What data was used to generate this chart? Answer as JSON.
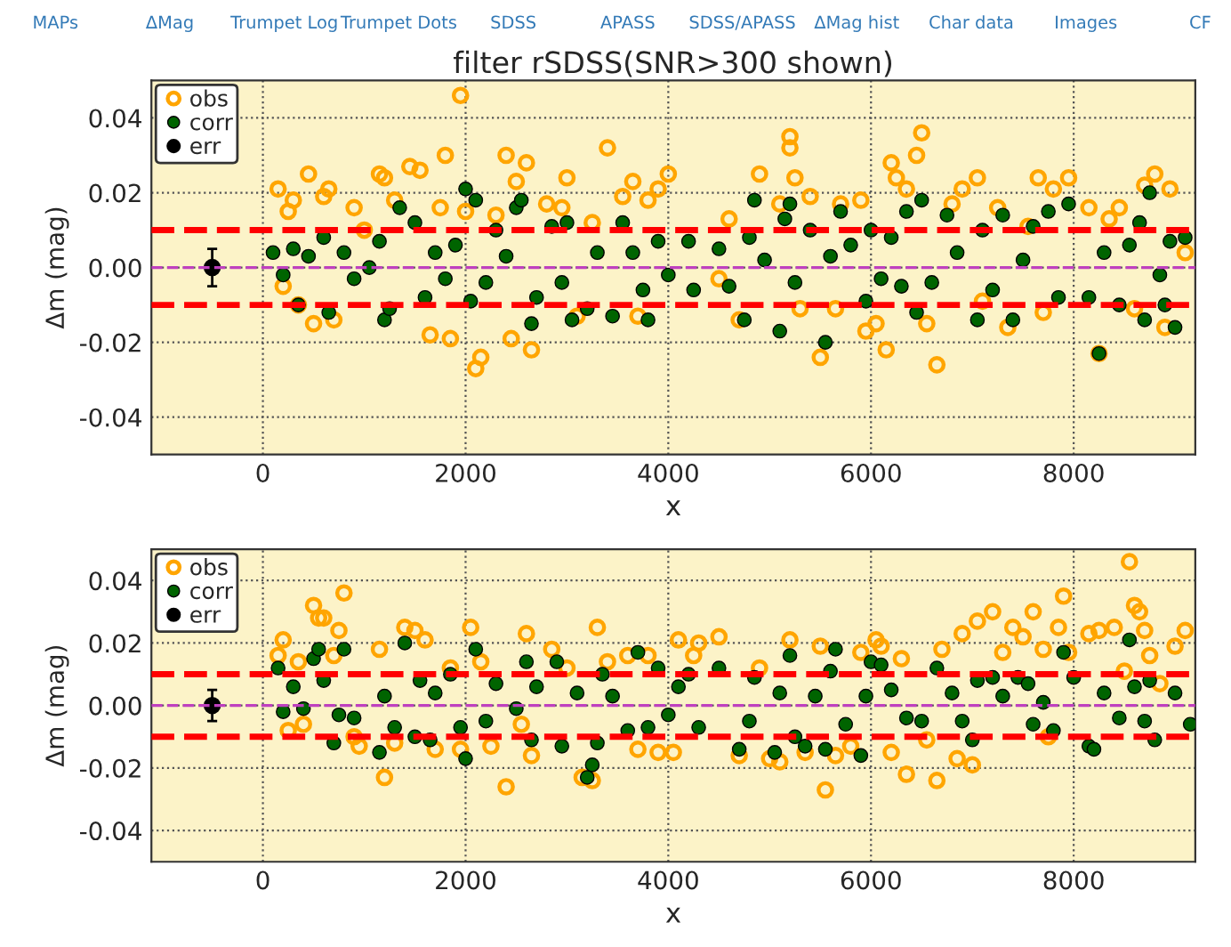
{
  "chart_data": [
    {
      "type": "scatter",
      "title": "filter rSDSS(SNR>300 shown)",
      "xlabel": "x",
      "ylabel": "Δm (mag)",
      "annotations": [
        "MAPs",
        "ΔMag",
        "Trumpet Log",
        "Trumpet Dots",
        "SDSS",
        "APASS",
        "SDSS/APASS",
        "ΔMag hist",
        "Char data",
        "Images",
        "CF"
      ],
      "xlim": [
        -1100,
        9200
      ],
      "xticks": [
        0,
        2000,
        4000,
        6000,
        8000
      ],
      "ylim": [
        -0.05,
        0.05
      ],
      "yticks": [
        {
          "value": -0.04,
          "label": "-0.04"
        },
        {
          "value": -0.02,
          "label": "-0.02"
        },
        {
          "value": 0,
          "label": "0.00"
        },
        {
          "value": 0.02,
          "label": "0.02"
        },
        {
          "value": 0.04,
          "label": "0.04"
        }
      ],
      "grid": true,
      "legend": "top left",
      "marker": "circle",
      "ref_lines": [
        {
          "axis": "y",
          "value": 0.01,
          "color": "#ff0000",
          "line_style": "dashed"
        },
        {
          "axis": "y",
          "value": -0.01,
          "color": "#ff0000",
          "line_style": "dashed"
        },
        {
          "axis": "y",
          "value": 0,
          "color": "#bf40bf",
          "line_style": "dashed"
        }
      ],
      "series": [
        {
          "name": "obs",
          "color": "#ffa500",
          "x": [
            150,
            200,
            250,
            300,
            350,
            450,
            500,
            600,
            650,
            700,
            900,
            1000,
            1150,
            1200,
            1300,
            1450,
            1550,
            1650,
            1750,
            1800,
            1850,
            1950,
            2000,
            2100,
            2150,
            2300,
            2400,
            2450,
            2500,
            2600,
            2650,
            2800,
            2950,
            3000,
            3100,
            3250,
            3400,
            3550,
            3650,
            3700,
            3800,
            3900,
            4000,
            4500,
            4600,
            4700,
            4900,
            5100,
            5200,
            5200,
            5250,
            5300,
            5400,
            5500,
            5650,
            5700,
            5900,
            5950,
            6050,
            6150,
            6200,
            6250,
            6350,
            6450,
            6500,
            6550,
            6650,
            6800,
            6900,
            7050,
            7100,
            7250,
            7350,
            7550,
            7650,
            7700,
            7800,
            7950,
            8150,
            8250,
            8350,
            8450,
            8600,
            8700,
            8800,
            8900,
            8950,
            9100
          ],
          "values": [
            0.021,
            -0.005,
            0.015,
            0.018,
            -0.01,
            0.025,
            -0.015,
            0.019,
            0.021,
            -0.014,
            0.016,
            0.01,
            0.025,
            0.024,
            0.018,
            0.027,
            0.026,
            -0.018,
            0.016,
            0.03,
            -0.019,
            0.046,
            0.015,
            -0.027,
            -0.024,
            0.014,
            0.03,
            -0.019,
            0.023,
            0.028,
            -0.022,
            0.017,
            0.016,
            0.024,
            -0.013,
            0.012,
            0.032,
            0.019,
            0.023,
            -0.013,
            0.018,
            0.021,
            0.025,
            -0.003,
            0.013,
            -0.014,
            0.025,
            0.017,
            0.035,
            0.032,
            0.024,
            -0.011,
            0.019,
            -0.024,
            -0.011,
            0.017,
            0.018,
            -0.017,
            -0.015,
            -0.022,
            0.028,
            0.024,
            0.021,
            0.03,
            0.036,
            -0.015,
            -0.026,
            0.017,
            0.021,
            0.024,
            -0.009,
            0.016,
            -0.016,
            0.011,
            0.024,
            -0.012,
            0.021,
            0.024,
            0.016,
            -0.023,
            0.013,
            0.016,
            -0.011,
            0.022,
            0.025,
            -0.016,
            0.021,
            0.004
          ]
        },
        {
          "name": "corr",
          "color": "#006400",
          "x": [
            100,
            200,
            300,
            350,
            450,
            600,
            650,
            800,
            900,
            1050,
            1150,
            1200,
            1250,
            1350,
            1500,
            1600,
            1700,
            1800,
            1900,
            2000,
            2050,
            2100,
            2200,
            2300,
            2400,
            2500,
            2550,
            2650,
            2700,
            2850,
            2950,
            3000,
            3050,
            3200,
            3300,
            3450,
            3550,
            3650,
            3750,
            3800,
            3900,
            4000,
            4200,
            4250,
            4500,
            4600,
            4750,
            4800,
            4850,
            4950,
            5100,
            5150,
            5200,
            5250,
            5400,
            5550,
            5600,
            5700,
            5800,
            5950,
            6000,
            6100,
            6200,
            6300,
            6350,
            6450,
            6500,
            6600,
            6750,
            6850,
            7050,
            7100,
            7200,
            7300,
            7400,
            7500,
            7600,
            7750,
            7850,
            7950,
            8150,
            8250,
            8300,
            8450,
            8550,
            8650,
            8700,
            8750,
            8850,
            8900,
            8950,
            9000,
            9100
          ],
          "values": [
            0.004,
            -0.002,
            0.005,
            -0.01,
            0.003,
            0.008,
            -0.012,
            0.004,
            -0.003,
            0.0,
            0.007,
            -0.014,
            -0.011,
            0.016,
            0.012,
            -0.008,
            0.004,
            -0.003,
            0.006,
            0.021,
            -0.009,
            0.018,
            -0.004,
            0.01,
            0.003,
            0.016,
            0.018,
            -0.015,
            -0.008,
            0.011,
            -0.004,
            0.012,
            -0.014,
            -0.011,
            0.004,
            -0.013,
            0.012,
            0.004,
            -0.006,
            -0.014,
            0.007,
            -0.002,
            0.007,
            -0.006,
            0.005,
            -0.005,
            -0.014,
            0.008,
            0.018,
            0.002,
            -0.017,
            0.013,
            0.017,
            -0.004,
            0.01,
            -0.02,
            0.003,
            0.015,
            0.006,
            -0.009,
            0.01,
            -0.003,
            0.008,
            -0.005,
            0.015,
            -0.012,
            0.018,
            -0.004,
            0.014,
            0.004,
            -0.014,
            0.01,
            -0.006,
            0.014,
            -0.014,
            0.002,
            0.011,
            0.015,
            -0.008,
            0.017,
            -0.008,
            -0.023,
            0.004,
            -0.01,
            0.006,
            0.012,
            -0.014,
            0.02,
            -0.002,
            -0.01,
            0.007,
            -0.016,
            0.008
          ]
        },
        {
          "name": "err",
          "color": "#000000",
          "x": [
            -500
          ],
          "values": [
            0
          ],
          "errors": [
            0.005
          ]
        }
      ]
    },
    {
      "type": "scatter",
      "xlabel": "x",
      "ylabel": "Δm (mag)",
      "xlim": [
        -1100,
        9200
      ],
      "xticks": [
        0,
        2000,
        4000,
        6000,
        8000
      ],
      "ylim": [
        -0.05,
        0.05
      ],
      "yticks": [
        {
          "value": -0.04,
          "label": "-0.04"
        },
        {
          "value": -0.02,
          "label": "-0.02"
        },
        {
          "value": 0,
          "label": "0.00"
        },
        {
          "value": 0.02,
          "label": "0.02"
        },
        {
          "value": 0.04,
          "label": "0.04"
        }
      ],
      "grid": true,
      "legend": "top left",
      "marker": "circle",
      "ref_lines": [
        {
          "axis": "y",
          "value": 0.01,
          "color": "#ff0000",
          "line_style": "dashed"
        },
        {
          "axis": "y",
          "value": -0.01,
          "color": "#ff0000",
          "line_style": "dashed"
        },
        {
          "axis": "y",
          "value": 0,
          "color": "#bf40bf",
          "line_style": "dashed"
        }
      ],
      "series": [
        {
          "name": "obs",
          "color": "#ffa500",
          "x": [
            150,
            200,
            250,
            350,
            400,
            500,
            550,
            600,
            700,
            750,
            800,
            900,
            950,
            1150,
            1200,
            1300,
            1400,
            1500,
            1600,
            1700,
            1850,
            1950,
            2050,
            2150,
            2250,
            2400,
            2550,
            2600,
            2650,
            2850,
            3000,
            3150,
            3250,
            3300,
            3400,
            3600,
            3700,
            3800,
            3900,
            4050,
            4100,
            4250,
            4300,
            4500,
            4700,
            4900,
            5000,
            5100,
            5200,
            5350,
            5500,
            5550,
            5650,
            5800,
            5900,
            6050,
            6100,
            6200,
            6300,
            6350,
            6550,
            6650,
            6700,
            6850,
            6900,
            7000,
            7050,
            7200,
            7300,
            7400,
            7500,
            7600,
            7700,
            7750,
            7850,
            7900,
            7950,
            8150,
            8250,
            8400,
            8500,
            8550,
            8600,
            8650,
            8700,
            8750,
            8850,
            9000,
            9100
          ],
          "values": [
            0.016,
            0.021,
            -0.008,
            0.014,
            -0.006,
            0.032,
            0.028,
            0.028,
            0.016,
            0.024,
            0.036,
            -0.01,
            -0.013,
            0.018,
            -0.023,
            -0.012,
            0.025,
            0.024,
            0.021,
            -0.014,
            0.012,
            -0.014,
            0.025,
            0.014,
            -0.013,
            -0.026,
            -0.006,
            0.023,
            -0.016,
            0.018,
            0.012,
            -0.023,
            -0.024,
            0.025,
            0.014,
            0.016,
            -0.014,
            0.016,
            -0.015,
            -0.015,
            0.021,
            0.016,
            0.02,
            0.022,
            -0.016,
            0.012,
            -0.017,
            -0.018,
            0.021,
            -0.015,
            0.019,
            -0.027,
            -0.016,
            -0.013,
            0.017,
            0.021,
            0.019,
            -0.015,
            0.015,
            -0.022,
            -0.011,
            -0.024,
            0.018,
            -0.017,
            0.023,
            -0.019,
            0.027,
            0.03,
            0.017,
            0.025,
            0.022,
            0.03,
            0.018,
            -0.01,
            0.025,
            0.035,
            0.017,
            0.023,
            0.024,
            0.025,
            0.011,
            0.046,
            0.032,
            0.03,
            0.024,
            0.016,
            0.007,
            0.019,
            0.024
          ]
        },
        {
          "name": "corr",
          "color": "#006400",
          "x": [
            150,
            200,
            300,
            400,
            500,
            550,
            600,
            700,
            750,
            800,
            900,
            1150,
            1200,
            1300,
            1400,
            1500,
            1550,
            1650,
            1700,
            1850,
            1950,
            2000,
            2100,
            2200,
            2300,
            2500,
            2600,
            2650,
            2700,
            2900,
            2950,
            3100,
            3200,
            3250,
            3300,
            3350,
            3450,
            3600,
            3700,
            3800,
            3900,
            4000,
            4100,
            4200,
            4300,
            4500,
            4700,
            4800,
            4850,
            5050,
            5100,
            5200,
            5250,
            5350,
            5450,
            5550,
            5600,
            5650,
            5750,
            5900,
            5950,
            6000,
            6100,
            6200,
            6350,
            6500,
            6650,
            6800,
            6900,
            7000,
            7050,
            7200,
            7300,
            7450,
            7550,
            7600,
            7700,
            7800,
            7900,
            8000,
            8150,
            8200,
            8300,
            8450,
            8550,
            8600,
            8700,
            8750,
            8800,
            9000,
            9150
          ],
          "values": [
            0.012,
            -0.002,
            0.006,
            -0.001,
            0.015,
            0.018,
            0.008,
            -0.012,
            -0.003,
            0.018,
            -0.004,
            -0.015,
            0.003,
            -0.007,
            0.02,
            -0.01,
            0.008,
            -0.011,
            0.004,
            0.01,
            -0.007,
            -0.017,
            0.018,
            -0.005,
            0.007,
            -0.001,
            0.014,
            -0.011,
            0.006,
            0.014,
            -0.013,
            0.004,
            -0.023,
            -0.019,
            -0.012,
            0.01,
            0.003,
            -0.008,
            0.017,
            -0.007,
            0.012,
            -0.003,
            0.006,
            0.01,
            -0.007,
            0.012,
            -0.014,
            -0.005,
            0.009,
            -0.015,
            0.004,
            0.016,
            -0.01,
            -0.013,
            0.003,
            -0.014,
            0.011,
            0.018,
            -0.006,
            -0.016,
            0.003,
            0.014,
            0.013,
            0.005,
            -0.004,
            -0.005,
            0.012,
            0.004,
            -0.005,
            -0.011,
            0.008,
            0.009,
            0.003,
            0.009,
            0.007,
            -0.006,
            0.001,
            -0.008,
            0.017,
            0.009,
            -0.013,
            -0.014,
            0.004,
            -0.004,
            0.021,
            0.006,
            -0.005,
            0.008,
            -0.011,
            0.004,
            -0.006
          ]
        },
        {
          "name": "err",
          "color": "#000000",
          "x": [
            -500
          ],
          "values": [
            0
          ],
          "errors": [
            0.005
          ]
        }
      ]
    }
  ]
}
